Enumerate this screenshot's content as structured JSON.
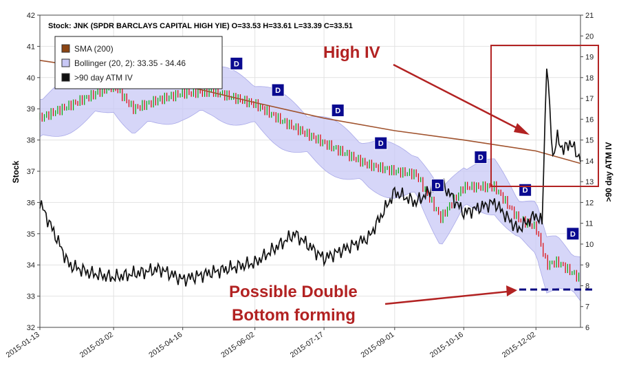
{
  "chart_data": {
    "type": "line",
    "title": "Stock: JNK (SPDR BARCLAYS CAPITAL HIGH YIE) O=33.53  H=33.61  L=33.39  C=33.51",
    "ylabel_left": "Stock",
    "ylabel_right": ">90 day ATM IV",
    "ylim_left": [
      32,
      42
    ],
    "ylim_right": [
      6,
      21
    ],
    "xlim": [
      "2015-01-13",
      "2015-12-31"
    ],
    "x_ticks": [
      "2015-01-13",
      "2015-03-02",
      "2015-04-16",
      "2015-06-02",
      "2015-07-17",
      "2015-09-01",
      "2015-10-16",
      "2015-12-02"
    ],
    "y_ticks_left": [
      32,
      33,
      34,
      35,
      36,
      37,
      38,
      39,
      40,
      41,
      42
    ],
    "y_ticks_right": [
      6,
      7,
      8,
      9,
      10,
      11,
      12,
      13,
      14,
      15,
      16,
      17,
      18,
      19,
      20,
      21
    ],
    "grid": true,
    "legend": {
      "position": "top-left",
      "entries": [
        {
          "label": "SMA (200)",
          "color": "#8b4513"
        },
        {
          "label": "Bollinger (20, 2): 33.35 - 34.46",
          "color": "#c8c8f5"
        },
        {
          "label": ">90 day ATM IV",
          "color": "#111111"
        }
      ]
    },
    "colors": {
      "up": "#00aa00",
      "down": "#dd0000",
      "sma": "#a0522d",
      "band": "#c8c8f5",
      "iv": "#111111",
      "annotation": "#b22222",
      "marker": "#0a0a90",
      "dashed": "#000080"
    },
    "series": [
      {
        "name": "Stock (close)",
        "axis": "left",
        "points": [
          [
            "2015-01-13",
            38.7
          ],
          [
            "2015-02-01",
            39.1
          ],
          [
            "2015-03-02",
            39.75
          ],
          [
            "2015-03-15",
            39.0
          ],
          [
            "2015-04-01",
            39.3
          ],
          [
            "2015-04-16",
            39.5
          ],
          [
            "2015-05-06",
            39.55
          ],
          [
            "2015-06-02",
            39.15
          ],
          [
            "2015-06-20",
            38.6
          ],
          [
            "2015-07-17",
            37.9
          ],
          [
            "2015-08-15",
            37.2
          ],
          [
            "2015-09-01",
            37.0
          ],
          [
            "2015-09-15",
            36.9
          ],
          [
            "2015-10-01",
            35.5
          ],
          [
            "2015-10-16",
            36.5
          ],
          [
            "2015-11-05",
            36.5
          ],
          [
            "2015-11-20",
            35.5
          ],
          [
            "2015-12-02",
            35.2
          ],
          [
            "2015-12-09",
            34.0
          ],
          [
            "2015-12-16",
            34.1
          ],
          [
            "2015-12-31",
            33.55
          ]
        ]
      },
      {
        "name": "SMA (200)",
        "axis": "left",
        "points": [
          [
            "2015-01-13",
            40.55
          ],
          [
            "2015-03-02",
            40.2
          ],
          [
            "2015-04-16",
            39.75
          ],
          [
            "2015-06-02",
            39.2
          ],
          [
            "2015-07-17",
            38.7
          ],
          [
            "2015-09-01",
            38.3
          ],
          [
            "2015-10-16",
            38.0
          ],
          [
            "2015-12-02",
            37.65
          ],
          [
            "2015-12-31",
            37.25
          ]
        ]
      },
      {
        "name": ">90 day ATM IV",
        "axis": "right",
        "points": [
          [
            "2015-01-13",
            12.0
          ],
          [
            "2015-02-01",
            9.0
          ],
          [
            "2015-02-15",
            8.6
          ],
          [
            "2015-03-02",
            8.4
          ],
          [
            "2015-04-01",
            8.8
          ],
          [
            "2015-04-16",
            8.3
          ],
          [
            "2015-05-20",
            8.9
          ],
          [
            "2015-06-02",
            9.1
          ],
          [
            "2015-06-28",
            10.5
          ],
          [
            "2015-07-17",
            9.3
          ],
          [
            "2015-08-15",
            10.3
          ],
          [
            "2015-09-01",
            12.5
          ],
          [
            "2015-09-15",
            12.0
          ],
          [
            "2015-10-01",
            13.0
          ],
          [
            "2015-10-16",
            11.5
          ],
          [
            "2015-11-05",
            12.0
          ],
          [
            "2015-11-20",
            10.7
          ],
          [
            "2015-12-02",
            11.4
          ],
          [
            "2015-12-06",
            11.0
          ],
          [
            "2015-12-09",
            18.7
          ],
          [
            "2015-12-13",
            14.2
          ],
          [
            "2015-12-16",
            15.1
          ],
          [
            "2015-12-20",
            14.5
          ],
          [
            "2015-12-24",
            14.9
          ],
          [
            "2015-12-31",
            14.1
          ]
        ]
      }
    ],
    "dividend_markers": [
      {
        "date": "2015-03-02",
        "price": 40.9,
        "label": "D"
      },
      {
        "date": "2015-03-20",
        "price": 40.3,
        "label": "D"
      },
      {
        "date": "2015-04-24",
        "price": 40.55,
        "label": "D"
      },
      {
        "date": "2015-05-21",
        "price": 40.45,
        "label": "D"
      },
      {
        "date": "2015-06-17",
        "price": 39.6,
        "label": "D"
      },
      {
        "date": "2015-07-26",
        "price": 38.95,
        "label": "D"
      },
      {
        "date": "2015-08-23",
        "price": 37.9,
        "label": "D"
      },
      {
        "date": "2015-09-29",
        "price": 36.55,
        "label": "D"
      },
      {
        "date": "2015-10-27",
        "price": 37.45,
        "label": "D"
      },
      {
        "date": "2015-11-25",
        "price": 36.4,
        "label": "D"
      },
      {
        "date": "2015-12-26",
        "price": 35.0,
        "label": "D"
      }
    ],
    "annotations": [
      {
        "text": "High IV"
      },
      {
        "text": "Possible Double"
      },
      {
        "text": "Bottom forming"
      }
    ]
  }
}
